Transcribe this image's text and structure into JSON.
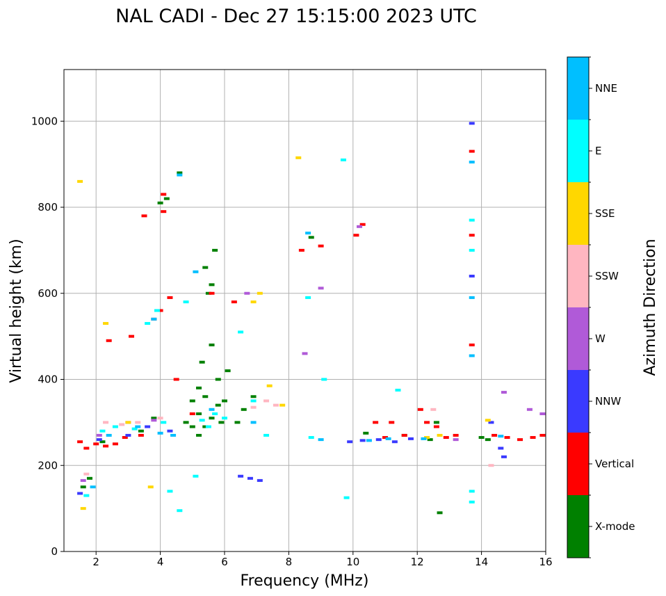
{
  "chart_data": {
    "type": "scatter",
    "title": "NAL CADI - Dec 27 15:15:00 2023 UTC",
    "xlabel": "Frequency (MHz)",
    "ylabel": "Virtual height (km)",
    "xlim": [
      1,
      16
    ],
    "ylim": [
      0,
      1120
    ],
    "xticks": [
      2,
      4,
      6,
      8,
      10,
      12,
      14,
      16
    ],
    "yticks": [
      0,
      200,
      400,
      600,
      800,
      1000
    ],
    "grid": true,
    "colorbar": {
      "label": "Azimuth Direction",
      "categories": [
        {
          "name": "X-mode",
          "color": "#008000"
        },
        {
          "name": "Vertical",
          "color": "#ff0000"
        },
        {
          "name": "NNW",
          "color": "#3a3aff"
        },
        {
          "name": "W",
          "color": "#b05ad8"
        },
        {
          "name": "SSW",
          "color": "#ffb6c1"
        },
        {
          "name": "SSE",
          "color": "#ffd700"
        },
        {
          "name": "E",
          "color": "#00ffff"
        },
        {
          "name": "NNE",
          "color": "#00bfff"
        }
      ]
    },
    "series": [
      {
        "name": "X-mode",
        "points": [
          [
            1.6,
            150
          ],
          [
            1.8,
            170
          ],
          [
            2.2,
            255
          ],
          [
            3.4,
            280
          ],
          [
            3.8,
            310
          ],
          [
            4.0,
            810
          ],
          [
            4.2,
            820
          ],
          [
            4.6,
            880
          ],
          [
            4.8,
            300
          ],
          [
            5.0,
            290
          ],
          [
            5.0,
            350
          ],
          [
            5.2,
            270
          ],
          [
            5.2,
            320
          ],
          [
            5.2,
            380
          ],
          [
            5.3,
            440
          ],
          [
            5.4,
            290
          ],
          [
            5.4,
            360
          ],
          [
            5.4,
            660
          ],
          [
            5.5,
            600
          ],
          [
            5.6,
            310
          ],
          [
            5.6,
            480
          ],
          [
            5.6,
            620
          ],
          [
            5.7,
            700
          ],
          [
            5.8,
            340
          ],
          [
            5.8,
            400
          ],
          [
            5.9,
            300
          ],
          [
            6.0,
            350
          ],
          [
            6.1,
            420
          ],
          [
            6.4,
            300
          ],
          [
            6.6,
            330
          ],
          [
            6.9,
            360
          ],
          [
            8.7,
            730
          ],
          [
            10.4,
            275
          ],
          [
            11.6,
            270
          ],
          [
            12.4,
            260
          ],
          [
            12.6,
            300
          ],
          [
            12.7,
            90
          ],
          [
            14.0,
            265
          ],
          [
            14.2,
            260
          ]
        ]
      },
      {
        "name": "Vertical",
        "points": [
          [
            1.5,
            255
          ],
          [
            1.7,
            240
          ],
          [
            2.0,
            250
          ],
          [
            2.3,
            245
          ],
          [
            2.4,
            490
          ],
          [
            2.6,
            250
          ],
          [
            2.9,
            265
          ],
          [
            3.1,
            500
          ],
          [
            3.4,
            270
          ],
          [
            3.5,
            780
          ],
          [
            3.8,
            540
          ],
          [
            4.0,
            560
          ],
          [
            4.1,
            790
          ],
          [
            4.1,
            830
          ],
          [
            4.3,
            590
          ],
          [
            4.5,
            400
          ],
          [
            5.0,
            320
          ],
          [
            5.6,
            600
          ],
          [
            6.3,
            580
          ],
          [
            8.4,
            700
          ],
          [
            9.0,
            710
          ],
          [
            10.1,
            735
          ],
          [
            10.3,
            760
          ],
          [
            10.7,
            300
          ],
          [
            11.0,
            265
          ],
          [
            11.2,
            300
          ],
          [
            11.6,
            270
          ],
          [
            12.1,
            330
          ],
          [
            12.3,
            300
          ],
          [
            12.6,
            290
          ],
          [
            12.9,
            265
          ],
          [
            13.2,
            270
          ],
          [
            13.7,
            480
          ],
          [
            13.7,
            735
          ],
          [
            13.7,
            930
          ],
          [
            14.4,
            270
          ],
          [
            14.8,
            265
          ],
          [
            15.2,
            260
          ],
          [
            15.6,
            265
          ],
          [
            15.9,
            270
          ]
        ]
      },
      {
        "name": "NNW",
        "points": [
          [
            1.5,
            135
          ],
          [
            2.1,
            260
          ],
          [
            3.0,
            270
          ],
          [
            3.6,
            290
          ],
          [
            4.3,
            280
          ],
          [
            6.5,
            175
          ],
          [
            6.8,
            170
          ],
          [
            7.1,
            165
          ],
          [
            9.9,
            255
          ],
          [
            10.3,
            258
          ],
          [
            10.8,
            260
          ],
          [
            11.3,
            255
          ],
          [
            11.8,
            262
          ],
          [
            13.7,
            640
          ],
          [
            13.7,
            995
          ],
          [
            14.3,
            300
          ],
          [
            14.6,
            240
          ],
          [
            14.7,
            220
          ]
        ]
      },
      {
        "name": "W",
        "points": [
          [
            1.6,
            165
          ],
          [
            2.1,
            270
          ],
          [
            3.0,
            300
          ],
          [
            3.8,
            305
          ],
          [
            6.7,
            600
          ],
          [
            8.5,
            460
          ],
          [
            9.0,
            612
          ],
          [
            10.2,
            755
          ],
          [
            13.2,
            260
          ],
          [
            14.7,
            370
          ],
          [
            15.5,
            330
          ],
          [
            15.9,
            320
          ]
        ]
      },
      {
        "name": "SSW",
        "points": [
          [
            1.7,
            180
          ],
          [
            2.3,
            300
          ],
          [
            2.8,
            295
          ],
          [
            3.3,
            300
          ],
          [
            4.0,
            310
          ],
          [
            6.9,
            335
          ],
          [
            7.3,
            350
          ],
          [
            7.6,
            340
          ],
          [
            12.5,
            330
          ],
          [
            14.3,
            200
          ]
        ]
      },
      {
        "name": "SSE",
        "points": [
          [
            1.5,
            860
          ],
          [
            1.6,
            100
          ],
          [
            2.3,
            530
          ],
          [
            3.0,
            300
          ],
          [
            3.7,
            150
          ],
          [
            6.9,
            580
          ],
          [
            7.1,
            600
          ],
          [
            7.4,
            385
          ],
          [
            7.8,
            340
          ],
          [
            8.3,
            915
          ],
          [
            12.3,
            265
          ],
          [
            12.7,
            270
          ],
          [
            14.2,
            305
          ]
        ]
      },
      {
        "name": "E",
        "points": [
          [
            1.7,
            130
          ],
          [
            2.2,
            280
          ],
          [
            2.6,
            290
          ],
          [
            3.2,
            285
          ],
          [
            3.6,
            530
          ],
          [
            3.9,
            560
          ],
          [
            4.1,
            300
          ],
          [
            4.3,
            140
          ],
          [
            4.6,
            95
          ],
          [
            4.8,
            580
          ],
          [
            5.1,
            175
          ],
          [
            5.3,
            305
          ],
          [
            5.5,
            290
          ],
          [
            5.7,
            320
          ],
          [
            6.0,
            310
          ],
          [
            6.5,
            510
          ],
          [
            6.9,
            350
          ],
          [
            7.3,
            270
          ],
          [
            8.6,
            590
          ],
          [
            8.7,
            265
          ],
          [
            9.1,
            400
          ],
          [
            9.7,
            910
          ],
          [
            9.8,
            125
          ],
          [
            11.4,
            375
          ],
          [
            13.7,
            770
          ],
          [
            13.7,
            700
          ],
          [
            13.7,
            140
          ],
          [
            13.7,
            115
          ]
        ]
      },
      {
        "name": "NNE",
        "points": [
          [
            1.9,
            150
          ],
          [
            2.4,
            270
          ],
          [
            3.3,
            290
          ],
          [
            3.8,
            540
          ],
          [
            4.0,
            275
          ],
          [
            4.4,
            270
          ],
          [
            4.6,
            875
          ],
          [
            5.1,
            650
          ],
          [
            5.6,
            330
          ],
          [
            6.9,
            300
          ],
          [
            8.6,
            740
          ],
          [
            9.0,
            260
          ],
          [
            10.5,
            258
          ],
          [
            11.1,
            262
          ],
          [
            12.2,
            262
          ],
          [
            13.7,
            590
          ],
          [
            13.7,
            455
          ],
          [
            13.7,
            905
          ],
          [
            14.6,
            268
          ]
        ]
      }
    ]
  }
}
